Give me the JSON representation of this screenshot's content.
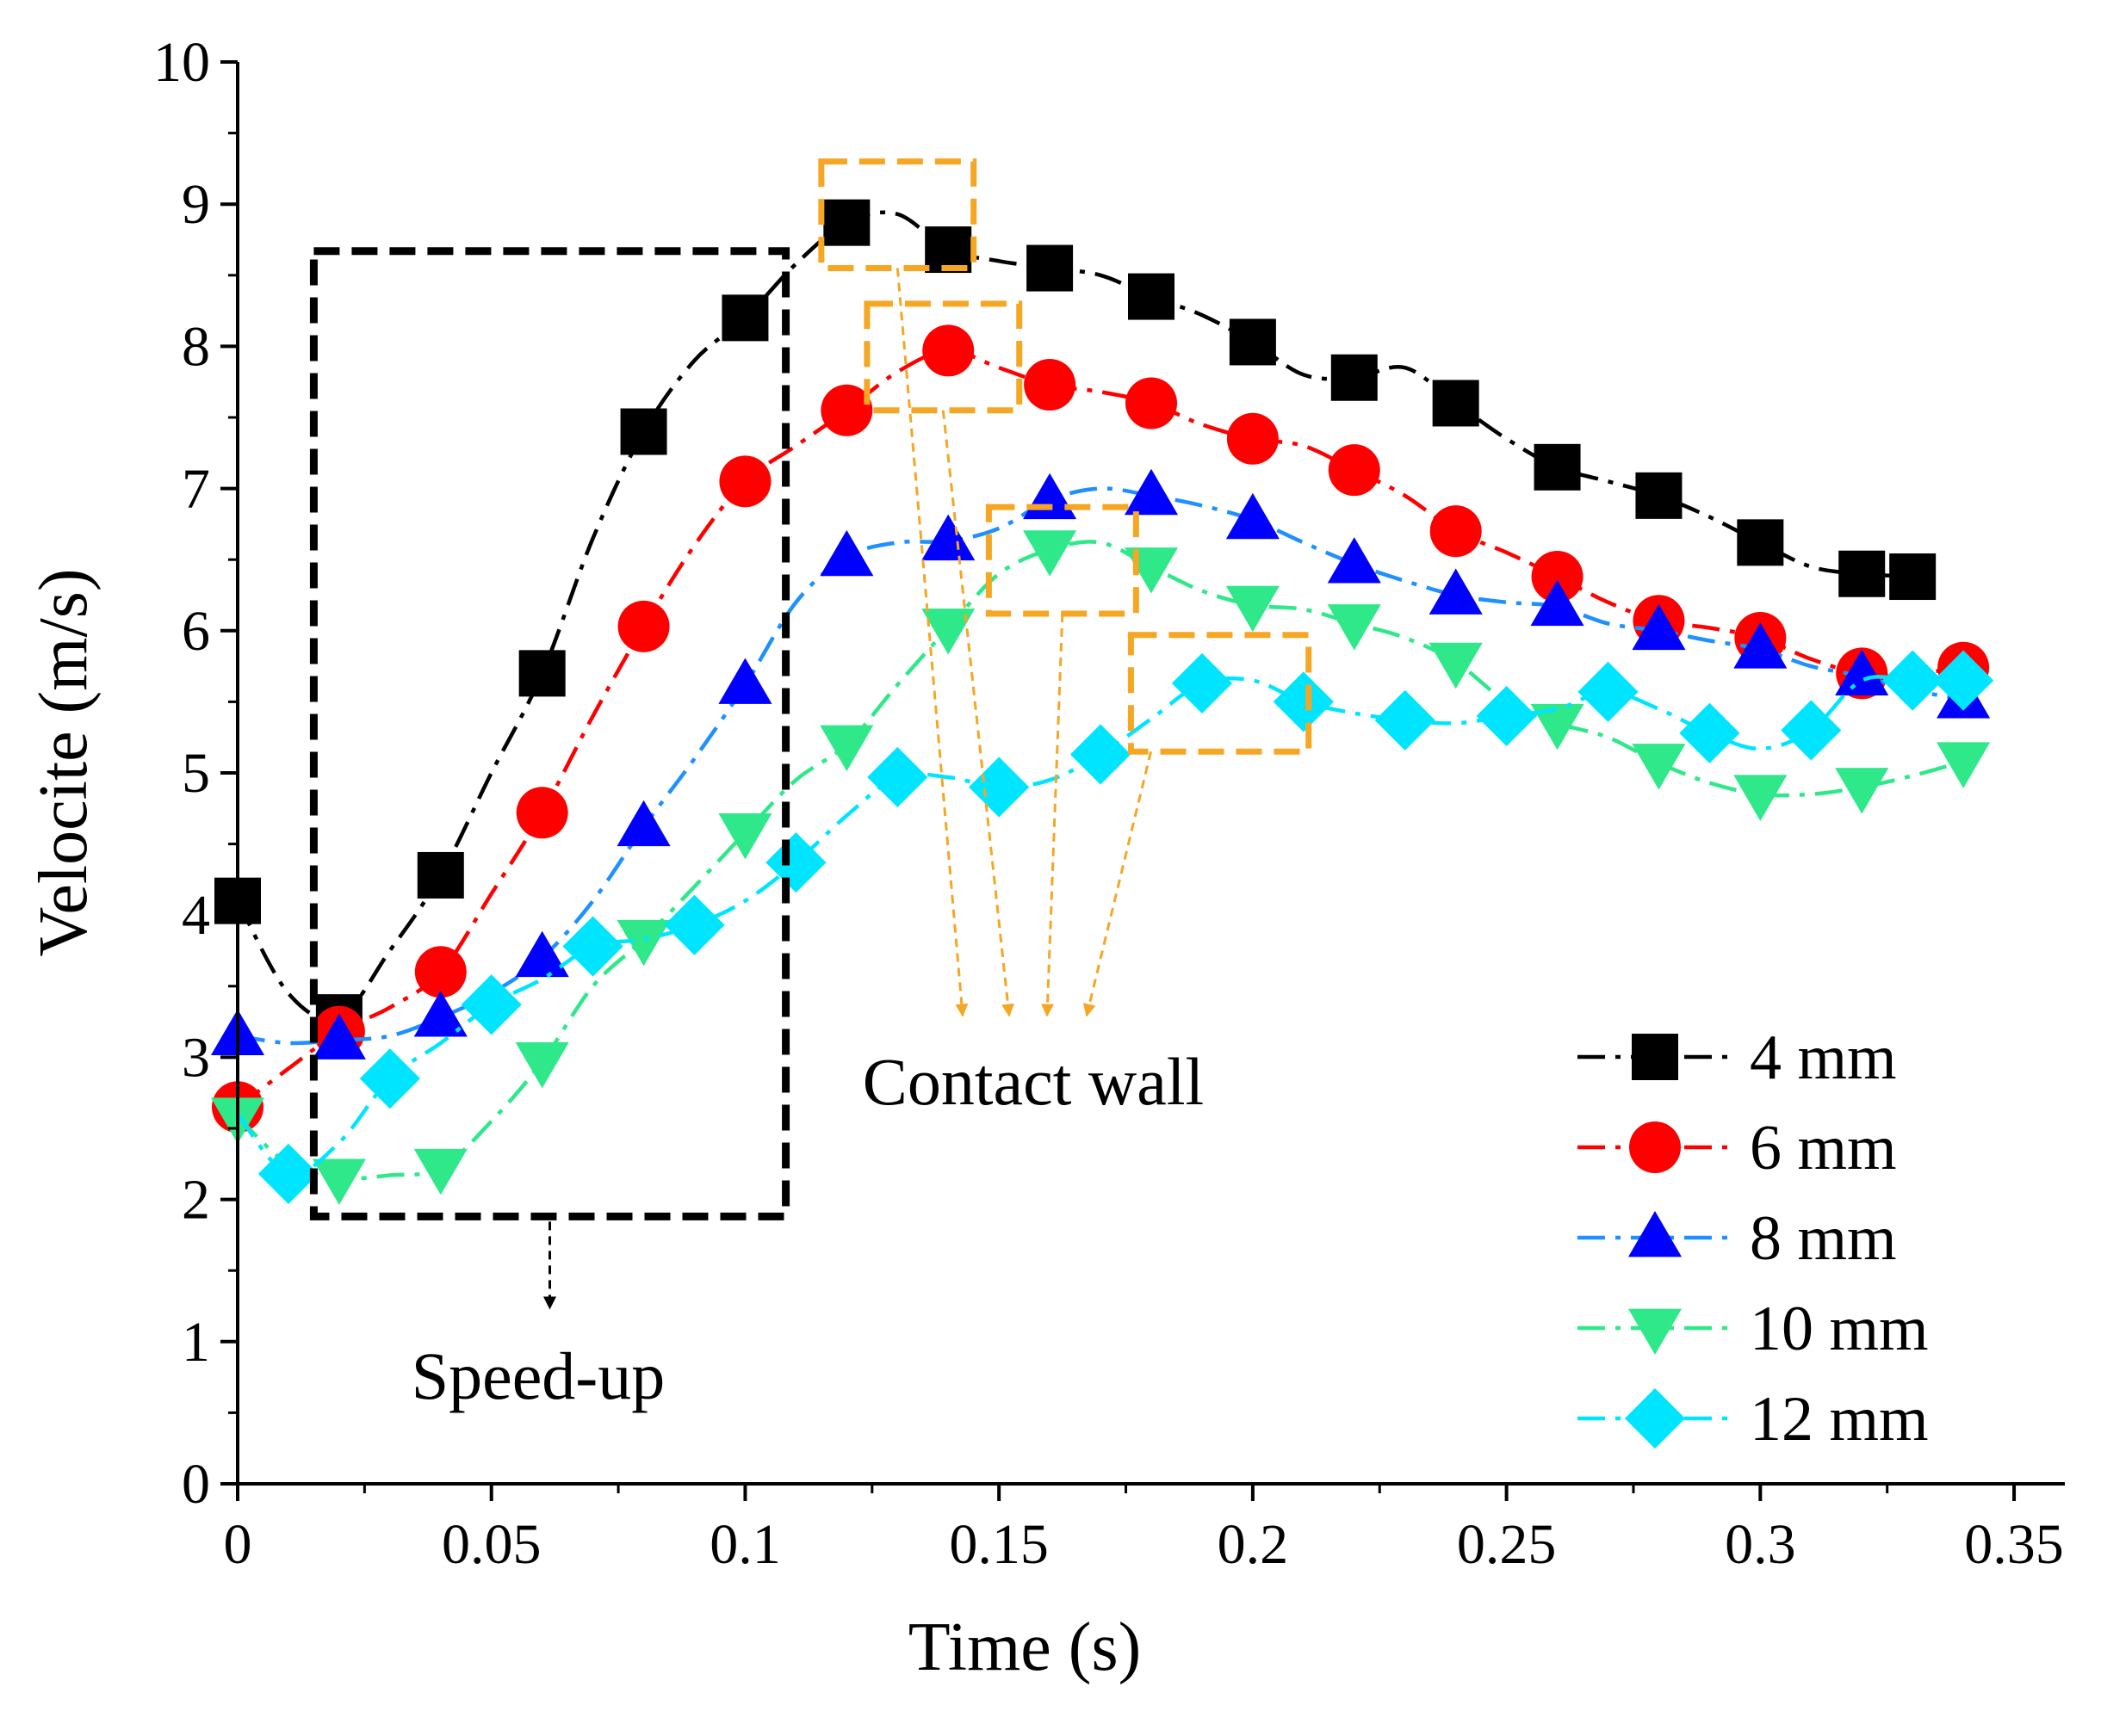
{
  "chart_data": {
    "type": "line",
    "title": "",
    "xlabel": "Time (s)",
    "ylabel": "Velocite (m/s)",
    "xlim": [
      0,
      0.36
    ],
    "ylim": [
      0,
      10
    ],
    "xticks": [
      0,
      0.05,
      0.1,
      0.15,
      0.2,
      0.25,
      0.3,
      0.35
    ],
    "xtick_labels": [
      "0",
      "0.05",
      "0.1",
      "0.15",
      "0.2",
      "0.25",
      "0.3",
      "0.35"
    ],
    "yticks": [
      0,
      1,
      2,
      3,
      4,
      5,
      6,
      7,
      8,
      9,
      10
    ],
    "ytick_labels": [
      "0",
      "1",
      "2",
      "3",
      "4",
      "5",
      "6",
      "7",
      "8",
      "9",
      "10"
    ],
    "grid": false,
    "legend_position": "bottom-right",
    "series": [
      {
        "name": "4 mm",
        "color": "#000000",
        "marker": "square",
        "x": [
          0,
          0.01,
          0.02,
          0.03,
          0.04,
          0.05,
          0.06,
          0.07,
          0.08,
          0.09,
          0.1,
          0.11,
          0.12,
          0.13,
          0.14,
          0.15,
          0.16,
          0.17,
          0.18,
          0.19,
          0.2,
          0.21,
          0.22,
          0.23,
          0.24,
          0.25,
          0.26,
          0.27,
          0.28,
          0.29,
          0.3,
          0.31,
          0.32,
          0.33
        ],
        "y": [
          4.1,
          3.45,
          3.28,
          3.75,
          4.28,
          5.0,
          5.7,
          6.65,
          7.4,
          7.9,
          8.2,
          8.58,
          8.87,
          8.93,
          8.68,
          8.6,
          8.55,
          8.5,
          8.35,
          8.22,
          8.03,
          7.8,
          7.78,
          7.85,
          7.6,
          7.35,
          7.15,
          7.05,
          6.95,
          6.8,
          6.62,
          6.45,
          6.4,
          6.38
        ],
        "marker_x": [
          0,
          0.02,
          0.04,
          0.06,
          0.08,
          0.1,
          0.12,
          0.14,
          0.16,
          0.18,
          0.2,
          0.22,
          0.24,
          0.26,
          0.28,
          0.3,
          0.32,
          0.33
        ],
        "marker_y": [
          4.1,
          3.28,
          4.28,
          5.7,
          7.4,
          8.2,
          8.87,
          8.68,
          8.55,
          8.35,
          8.03,
          7.78,
          7.6,
          7.15,
          6.95,
          6.62,
          6.4,
          6.38
        ]
      },
      {
        "name": "6 mm",
        "color": "#ff0000",
        "marker": "circle",
        "x": [
          0,
          0.01,
          0.02,
          0.03,
          0.04,
          0.05,
          0.06,
          0.07,
          0.08,
          0.09,
          0.1,
          0.11,
          0.12,
          0.13,
          0.14,
          0.15,
          0.16,
          0.17,
          0.18,
          0.19,
          0.2,
          0.21,
          0.22,
          0.23,
          0.24,
          0.25,
          0.26,
          0.27,
          0.28,
          0.29,
          0.3,
          0.31,
          0.32,
          0.33,
          0.34
        ],
        "y": [
          2.65,
          2.92,
          3.18,
          3.35,
          3.6,
          4.15,
          4.72,
          5.4,
          6.03,
          6.6,
          7.05,
          7.3,
          7.55,
          7.82,
          7.97,
          7.85,
          7.73,
          7.68,
          7.6,
          7.45,
          7.35,
          7.3,
          7.13,
          6.95,
          6.7,
          6.55,
          6.38,
          6.2,
          6.07,
          6.02,
          5.95,
          5.8,
          5.7,
          5.7,
          5.74
        ],
        "marker_x": [
          0,
          0.02,
          0.04,
          0.06,
          0.08,
          0.1,
          0.12,
          0.14,
          0.16,
          0.18,
          0.2,
          0.22,
          0.24,
          0.26,
          0.28,
          0.3,
          0.32,
          0.34
        ],
        "marker_y": [
          2.65,
          3.18,
          3.6,
          4.72,
          6.03,
          7.05,
          7.55,
          7.97,
          7.73,
          7.6,
          7.35,
          7.13,
          6.7,
          6.38,
          6.07,
          5.95,
          5.7,
          5.74
        ]
      },
      {
        "name": "8 mm",
        "color": "#0000ff",
        "line_color": "#1e90ff",
        "marker": "triangle-up",
        "x": [
          0,
          0.01,
          0.02,
          0.03,
          0.04,
          0.05,
          0.06,
          0.07,
          0.08,
          0.09,
          0.1,
          0.11,
          0.12,
          0.13,
          0.14,
          0.15,
          0.16,
          0.17,
          0.18,
          0.19,
          0.2,
          0.21,
          0.22,
          0.23,
          0.24,
          0.25,
          0.26,
          0.27,
          0.28,
          0.29,
          0.3,
          0.31,
          0.32,
          0.33,
          0.34
        ],
        "y": [
          3.15,
          3.1,
          3.12,
          3.15,
          3.28,
          3.45,
          3.7,
          4.1,
          4.62,
          5.1,
          5.62,
          6.2,
          6.52,
          6.62,
          6.63,
          6.72,
          6.92,
          7.0,
          6.95,
          6.88,
          6.78,
          6.62,
          6.47,
          6.35,
          6.25,
          6.2,
          6.17,
          6.05,
          6.0,
          5.93,
          5.87,
          5.75,
          5.68,
          5.58,
          5.52
        ],
        "marker_x": [
          0,
          0.02,
          0.04,
          0.06,
          0.08,
          0.1,
          0.12,
          0.14,
          0.16,
          0.18,
          0.2,
          0.22,
          0.24,
          0.26,
          0.28,
          0.3,
          0.32,
          0.34
        ],
        "marker_y": [
          3.15,
          3.12,
          3.28,
          3.7,
          4.62,
          5.62,
          6.52,
          6.63,
          6.92,
          6.95,
          6.78,
          6.47,
          6.25,
          6.17,
          6.0,
          5.87,
          5.68,
          5.52
        ]
      },
      {
        "name": "10 mm",
        "color": "#2ee88a",
        "marker": "triangle-down",
        "x": [
          0,
          0.01,
          0.02,
          0.03,
          0.04,
          0.05,
          0.06,
          0.07,
          0.08,
          0.09,
          0.1,
          0.11,
          0.12,
          0.13,
          0.14,
          0.15,
          0.16,
          0.17,
          0.18,
          0.19,
          0.2,
          0.21,
          0.22,
          0.23,
          0.24,
          0.25,
          0.26,
          0.27,
          0.28,
          0.29,
          0.3,
          0.31,
          0.32,
          0.33,
          0.34
        ],
        "y": [
          2.58,
          2.25,
          2.15,
          2.17,
          2.22,
          2.55,
          2.97,
          3.5,
          3.83,
          4.2,
          4.58,
          4.95,
          5.2,
          5.62,
          6.02,
          6.4,
          6.57,
          6.62,
          6.45,
          6.28,
          6.18,
          6.15,
          6.05,
          5.95,
          5.78,
          5.5,
          5.35,
          5.25,
          5.07,
          4.93,
          4.85,
          4.85,
          4.9,
          4.98,
          5.08
        ],
        "marker_x": [
          0,
          0.02,
          0.04,
          0.06,
          0.08,
          0.1,
          0.12,
          0.14,
          0.16,
          0.18,
          0.2,
          0.22,
          0.24,
          0.26,
          0.28,
          0.3,
          0.32,
          0.34
        ],
        "marker_y": [
          2.58,
          2.15,
          2.22,
          2.97,
          3.83,
          4.58,
          5.2,
          6.02,
          6.57,
          6.45,
          6.18,
          6.05,
          5.78,
          5.35,
          5.07,
          4.85,
          4.9,
          5.08
        ]
      },
      {
        "name": "12 mm",
        "color": "#00e5ff",
        "marker": "diamond",
        "x": [
          0,
          0.01,
          0.02,
          0.03,
          0.04,
          0.05,
          0.06,
          0.07,
          0.08,
          0.09,
          0.1,
          0.11,
          0.12,
          0.13,
          0.14,
          0.15,
          0.16,
          0.17,
          0.18,
          0.19,
          0.2,
          0.21,
          0.22,
          0.23,
          0.24,
          0.25,
          0.26,
          0.27,
          0.28,
          0.29,
          0.3,
          0.31,
          0.32,
          0.33,
          0.34
        ],
        "y": [
          2.6,
          2.18,
          2.4,
          2.85,
          3.1,
          3.37,
          3.55,
          3.78,
          3.83,
          3.93,
          4.1,
          4.37,
          4.7,
          4.97,
          4.97,
          4.9,
          4.95,
          5.13,
          5.38,
          5.63,
          5.65,
          5.5,
          5.42,
          5.37,
          5.35,
          5.4,
          5.45,
          5.57,
          5.45,
          5.28,
          5.17,
          5.3,
          5.65,
          5.65,
          5.65
        ],
        "marker_x": [
          0.01,
          0.03,
          0.05,
          0.07,
          0.09,
          0.11,
          0.13,
          0.15,
          0.17,
          0.19,
          0.21,
          0.23,
          0.25,
          0.27,
          0.29,
          0.31,
          0.33,
          0.34
        ],
        "marker_y": [
          2.18,
          2.85,
          3.37,
          3.78,
          3.93,
          4.37,
          4.97,
          4.9,
          5.13,
          5.63,
          5.5,
          5.37,
          5.4,
          5.57,
          5.28,
          5.3,
          5.65,
          5.65
        ]
      }
    ],
    "annotations": {
      "speed_up": {
        "text": "Speed-up",
        "color": "#000000",
        "box_x": [
          0.015,
          0.108
        ],
        "box_y": [
          1.88,
          8.67
        ]
      },
      "contact_wall": {
        "text": "Contact wall",
        "color": "#f5a623",
        "boxes": [
          {
            "x": [
              0.115,
              0.145
            ],
            "y": [
              8.55,
              9.3
            ]
          },
          {
            "x": [
              0.124,
              0.154
            ],
            "y": [
              7.55,
              8.3
            ]
          },
          {
            "x": [
              0.148,
              0.177
            ],
            "y": [
              6.12,
              6.87
            ]
          },
          {
            "x": [
              0.176,
              0.211
            ],
            "y": [
              5.15,
              5.97
            ]
          }
        ]
      }
    }
  }
}
